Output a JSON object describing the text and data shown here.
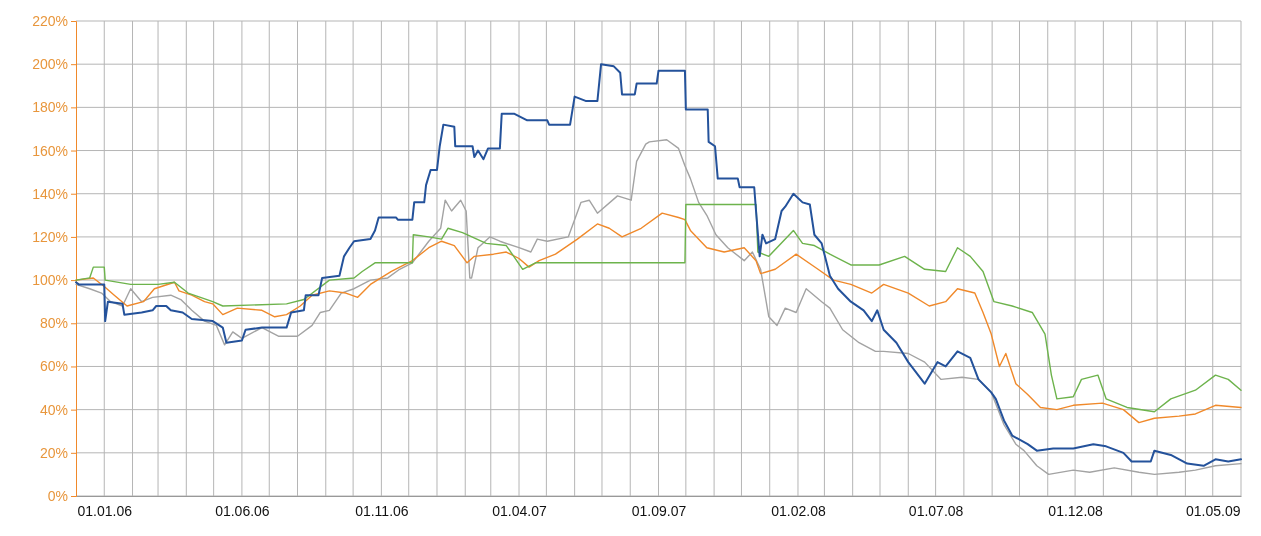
{
  "chart_data": {
    "type": "line",
    "grid": true,
    "marker": "none",
    "line_style": "solid",
    "xlim": [
      "2005-12-01",
      "2009-06-01"
    ],
    "xticks": [
      {
        "value": "2006-01-01",
        "label": "01.01.06"
      },
      {
        "value": "2006-02-01",
        "label": null
      },
      {
        "value": "2006-03-01",
        "label": null
      },
      {
        "value": "2006-04-01",
        "label": null
      },
      {
        "value": "2006-05-01",
        "label": null
      },
      {
        "value": "2006-06-01",
        "label": "01.06.06"
      },
      {
        "value": "2006-07-01",
        "label": null
      },
      {
        "value": "2006-08-01",
        "label": null
      },
      {
        "value": "2006-09-01",
        "label": null
      },
      {
        "value": "2006-10-01",
        "label": null
      },
      {
        "value": "2006-11-01",
        "label": "01.11.06"
      },
      {
        "value": "2006-12-01",
        "label": null
      },
      {
        "value": "2007-01-01",
        "label": null
      },
      {
        "value": "2007-02-01",
        "label": null
      },
      {
        "value": "2007-03-01",
        "label": null
      },
      {
        "value": "2007-04-01",
        "label": "01.04.07"
      },
      {
        "value": "2007-05-01",
        "label": null
      },
      {
        "value": "2007-06-01",
        "label": null
      },
      {
        "value": "2007-07-01",
        "label": null
      },
      {
        "value": "2007-08-01",
        "label": null
      },
      {
        "value": "2007-09-01",
        "label": "01.09.07"
      },
      {
        "value": "2007-10-01",
        "label": null
      },
      {
        "value": "2007-11-01",
        "label": null
      },
      {
        "value": "2007-12-01",
        "label": null
      },
      {
        "value": "2008-01-01",
        "label": null
      },
      {
        "value": "2008-02-01",
        "label": "01.02.08"
      },
      {
        "value": "2008-03-01",
        "label": null
      },
      {
        "value": "2008-04-01",
        "label": null
      },
      {
        "value": "2008-05-01",
        "label": null
      },
      {
        "value": "2008-06-01",
        "label": null
      },
      {
        "value": "2008-07-01",
        "label": "01.07.08"
      },
      {
        "value": "2008-08-01",
        "label": null
      },
      {
        "value": "2008-09-01",
        "label": null
      },
      {
        "value": "2008-10-01",
        "label": null
      },
      {
        "value": "2008-11-01",
        "label": null
      },
      {
        "value": "2008-12-01",
        "label": "01.12.08"
      },
      {
        "value": "2009-01-01",
        "label": null
      },
      {
        "value": "2009-02-01",
        "label": null
      },
      {
        "value": "2009-03-01",
        "label": null
      },
      {
        "value": "2009-04-01",
        "label": null
      },
      {
        "value": "2009-05-01",
        "label": "01.05.09"
      }
    ],
    "ylim": [
      0,
      220
    ],
    "yticks": [
      {
        "value": 0,
        "label": "0%"
      },
      {
        "value": 20,
        "label": "20%"
      },
      {
        "value": 40,
        "label": "40%"
      },
      {
        "value": 60,
        "label": "60%"
      },
      {
        "value": 80,
        "label": "80%"
      },
      {
        "value": 100,
        "label": "100%"
      },
      {
        "value": 120,
        "label": "120%"
      },
      {
        "value": 140,
        "label": "140%"
      },
      {
        "value": 160,
        "label": "160%"
      },
      {
        "value": 180,
        "label": "180%"
      },
      {
        "value": 200,
        "label": "200%"
      },
      {
        "value": 220,
        "label": "220%"
      }
    ],
    "series": [
      {
        "color": "#a3a3a3",
        "x": [
          "2005-12-01",
          "2005-12-16",
          "2005-12-29",
          "2006-01-08",
          "2006-01-21",
          "2006-01-30",
          "2006-02-11",
          "2006-02-23",
          "2006-03-15",
          "2006-03-26",
          "2006-04-07",
          "2006-04-21",
          "2006-05-04",
          "2006-05-13",
          "2006-05-22",
          "2006-06-01",
          "2006-06-23",
          "2006-07-11",
          "2006-08-01",
          "2006-08-17",
          "2006-08-26",
          "2006-09-05",
          "2006-09-18",
          "2006-10-02",
          "2006-10-20",
          "2006-11-08",
          "2006-11-21",
          "2006-12-05",
          "2006-12-23",
          "2007-01-05",
          "2007-01-10",
          "2007-01-17",
          "2007-01-27",
          "2007-02-02",
          "2007-02-06",
          "2007-02-08",
          "2007-02-15",
          "2007-02-28",
          "2007-03-11",
          "2007-04-01",
          "2007-04-14",
          "2007-04-21",
          "2007-05-02",
          "2007-05-25",
          "2007-06-08",
          "2007-06-17",
          "2007-06-26",
          "2007-07-18",
          "2007-08-02",
          "2007-08-08",
          "2007-08-18",
          "2007-08-22",
          "2007-09-10",
          "2007-09-23",
          "2007-09-30",
          "2007-10-06",
          "2007-10-15",
          "2007-10-24",
          "2007-11-03",
          "2007-11-16",
          "2007-12-04",
          "2007-12-13",
          "2007-12-22",
          "2007-12-31",
          "2008-01-09",
          "2008-01-18",
          "2008-01-30",
          "2008-02-10",
          "2008-02-27",
          "2008-03-07",
          "2008-03-21",
          "2008-04-08",
          "2008-04-26",
          "2008-05-05",
          "2008-06-01",
          "2008-06-19",
          "2008-07-07",
          "2008-07-30",
          "2008-08-17",
          "2008-08-31",
          "2008-09-14",
          "2008-09-27",
          "2008-10-06",
          "2008-10-20",
          "2008-11-02",
          "2008-11-29",
          "2008-12-17",
          "2009-01-13",
          "2009-02-09",
          "2009-02-26",
          "2009-03-25",
          "2009-04-12",
          "2009-05-04",
          "2009-06-01"
        ],
        "values": [
          98,
          96,
          94,
          90,
          88,
          96,
          90,
          92,
          93,
          91,
          86,
          81,
          79,
          70,
          76,
          73,
          78,
          74,
          74,
          79,
          85,
          86,
          94,
          96,
          100,
          101,
          105,
          108,
          118,
          124,
          137,
          132,
          137,
          132,
          101,
          101,
          115,
          120,
          118,
          115,
          113,
          119,
          118,
          120,
          136,
          137,
          131,
          139,
          137,
          155,
          163,
          164,
          165,
          161,
          153,
          147,
          136,
          130,
          121,
          115,
          109,
          113,
          105,
          83,
          79,
          87,
          85,
          96,
          90,
          87,
          77,
          71,
          67,
          67,
          66,
          62,
          54,
          55,
          54,
          48,
          33,
          24,
          21,
          14,
          10,
          12,
          11,
          13,
          11,
          10,
          11,
          12,
          14,
          15
        ]
      },
      {
        "color": "#f0892a",
        "x": [
          "2005-12-01",
          "2005-12-20",
          "2006-01-01",
          "2006-01-12",
          "2006-01-26",
          "2006-02-13",
          "2006-02-25",
          "2006-03-19",
          "2006-03-24",
          "2006-04-07",
          "2006-04-21",
          "2006-04-30",
          "2006-05-11",
          "2006-05-27",
          "2006-06-23",
          "2006-07-07",
          "2006-07-20",
          "2006-08-04",
          "2006-08-17",
          "2006-09-05",
          "2006-09-23",
          "2006-10-06",
          "2006-10-20",
          "2006-11-12",
          "2006-12-05",
          "2006-12-23",
          "2007-01-06",
          "2007-01-20",
          "2007-02-03",
          "2007-02-11",
          "2007-03-04",
          "2007-03-18",
          "2007-04-01",
          "2007-04-12",
          "2007-04-23",
          "2007-05-11",
          "2007-06-04",
          "2007-06-26",
          "2007-07-09",
          "2007-07-23",
          "2007-08-13",
          "2007-09-05",
          "2007-09-23",
          "2007-09-30",
          "2007-10-06",
          "2007-10-24",
          "2007-11-12",
          "2007-12-04",
          "2007-12-17",
          "2007-12-22",
          "2008-01-07",
          "2008-01-30",
          "2008-02-23",
          "2008-03-11",
          "2008-03-30",
          "2008-04-22",
          "2008-05-05",
          "2008-06-01",
          "2008-06-24",
          "2008-07-12",
          "2008-07-25",
          "2008-08-13",
          "2008-08-22",
          "2008-08-31",
          "2008-09-09",
          "2008-09-16",
          "2008-09-27",
          "2008-10-10",
          "2008-10-24",
          "2008-11-11",
          "2008-11-29",
          "2008-12-31",
          "2009-01-23",
          "2009-02-09",
          "2009-02-26",
          "2009-03-25",
          "2009-04-12",
          "2009-05-04",
          "2009-06-01"
        ],
        "values": [
          100,
          101,
          97,
          93,
          88,
          90,
          96,
          99,
          95,
          93,
          90,
          89,
          84,
          87,
          86,
          83,
          84,
          88,
          93,
          95,
          94,
          92,
          98,
          104,
          109,
          115,
          118,
          116,
          108,
          111,
          112,
          113,
          110,
          106,
          109,
          112,
          119,
          126,
          124,
          120,
          124,
          131,
          129,
          128,
          123,
          115,
          113,
          115,
          109,
          103,
          105,
          112,
          105,
          100,
          98,
          94,
          98,
          94,
          88,
          90,
          96,
          94,
          85,
          75,
          60,
          66,
          52,
          47,
          41,
          40,
          42,
          43,
          40,
          34,
          36,
          37,
          38,
          42,
          41
        ]
      },
      {
        "color": "#6db34c",
        "x": [
          "2005-12-01",
          "2005-12-16",
          "2005-12-20",
          "2006-01-01",
          "2006-01-02",
          "2006-01-30",
          "2006-03-01",
          "2006-03-19",
          "2006-04-03",
          "2006-04-30",
          "2006-05-11",
          "2006-07-20",
          "2006-08-08",
          "2006-09-05",
          "2006-10-02",
          "2006-10-11",
          "2006-10-25",
          "2006-11-17",
          "2006-12-05",
          "2006-12-06",
          "2006-12-23",
          "2007-01-06",
          "2007-01-13",
          "2007-01-29",
          "2007-02-24",
          "2007-03-18",
          "2007-04-05",
          "2007-04-19",
          "2007-09-30",
          "2007-10-01",
          "2007-12-17",
          "2007-12-19",
          "2007-12-31",
          "2008-01-27",
          "2008-02-06",
          "2008-02-19",
          "2008-03-07",
          "2008-03-30",
          "2008-04-30",
          "2008-05-28",
          "2008-06-19",
          "2008-07-12",
          "2008-07-25",
          "2008-08-08",
          "2008-08-22",
          "2008-09-03",
          "2008-09-23",
          "2008-10-15",
          "2008-10-29",
          "2008-11-05",
          "2008-11-11",
          "2008-11-29",
          "2008-12-08",
          "2008-12-26",
          "2009-01-04",
          "2009-01-27",
          "2009-02-26",
          "2009-03-16",
          "2009-04-12",
          "2009-05-04",
          "2009-05-18",
          "2009-06-01"
        ],
        "values": [
          100,
          101,
          106,
          106,
          100,
          98,
          98,
          99,
          94,
          90,
          88,
          89,
          91,
          100,
          101,
          104,
          108,
          108,
          108,
          121,
          120,
          119,
          124,
          122,
          117,
          116,
          105,
          108,
          108,
          135,
          135,
          113,
          111,
          123,
          117,
          116,
          112,
          107,
          107,
          111,
          105,
          104,
          115,
          111,
          104,
          90,
          88,
          85,
          75,
          56,
          45,
          46,
          54,
          56,
          45,
          41,
          39,
          45,
          49,
          56,
          54,
          49
        ]
      },
      {
        "color": "#24529b",
        "x": [
          "2005-12-01",
          "2005-12-04",
          "2006-01-01",
          "2006-01-02",
          "2006-01-05",
          "2006-01-21",
          "2006-01-23",
          "2006-02-11",
          "2006-02-23",
          "2006-02-27",
          "2006-03-10",
          "2006-03-15",
          "2006-03-28",
          "2006-04-07",
          "2006-04-30",
          "2006-05-11",
          "2006-05-15",
          "2006-06-01",
          "2006-06-05",
          "2006-06-23",
          "2006-07-20",
          "2006-07-25",
          "2006-08-08",
          "2006-08-10",
          "2006-08-24",
          "2006-08-28",
          "2006-09-16",
          "2006-09-21",
          "2006-09-27",
          "2006-10-02",
          "2006-10-20",
          "2006-10-25",
          "2006-10-29",
          "2006-11-17",
          "2006-11-19",
          "2006-12-05",
          "2006-12-07",
          "2006-12-18",
          "2006-12-20",
          "2006-12-25",
          "2007-01-01",
          "2007-01-04",
          "2007-01-08",
          "2007-01-20",
          "2007-01-21",
          "2007-02-09",
          "2007-02-11",
          "2007-02-15",
          "2007-02-21",
          "2007-02-26",
          "2007-03-11",
          "2007-03-13",
          "2007-03-27",
          "2007-04-10",
          "2007-05-02",
          "2007-05-04",
          "2007-05-27",
          "2007-06-01",
          "2007-06-13",
          "2007-06-26",
          "2007-06-30",
          "2007-07-14",
          "2007-07-21",
          "2007-07-23",
          "2007-08-06",
          "2007-08-08",
          "2007-08-30",
          "2007-09-01",
          "2007-09-30",
          "2007-10-01",
          "2007-10-25",
          "2007-10-26",
          "2007-11-02",
          "2007-11-05",
          "2007-11-27",
          "2007-11-29",
          "2007-12-15",
          "2007-12-17",
          "2007-12-21",
          "2007-12-24",
          "2007-12-28",
          "2008-01-07",
          "2008-01-14",
          "2008-01-18",
          "2008-01-27",
          "2008-02-06",
          "2008-02-14",
          "2008-02-19",
          "2008-02-27",
          "2008-03-07",
          "2008-03-16",
          "2008-03-30",
          "2008-04-13",
          "2008-04-22",
          "2008-04-28",
          "2008-05-05",
          "2008-05-19",
          "2008-06-01",
          "2008-06-19",
          "2008-07-03",
          "2008-07-12",
          "2008-07-25",
          "2008-08-08",
          "2008-08-17",
          "2008-08-31",
          "2008-09-05",
          "2008-09-14",
          "2008-09-23",
          "2008-10-10",
          "2008-10-20",
          "2008-11-07",
          "2008-11-29",
          "2008-12-21",
          "2009-01-04",
          "2009-01-23",
          "2009-02-01",
          "2009-02-22",
          "2009-02-26",
          "2009-03-16",
          "2009-04-03",
          "2009-04-21",
          "2009-05-04",
          "2009-05-18",
          "2009-06-01"
        ],
        "values": [
          99,
          98,
          98,
          81,
          90,
          89,
          84,
          85,
          86,
          88,
          88,
          86,
          85,
          82,
          81,
          78,
          71,
          72,
          77,
          78,
          78,
          85,
          86,
          93,
          93,
          101,
          102,
          111,
          115,
          118,
          119,
          123,
          129,
          129,
          128,
          128,
          136,
          136,
          144,
          151,
          151,
          162,
          172,
          171,
          162,
          162,
          157,
          160,
          156,
          161,
          161,
          177,
          177,
          174,
          174,
          172,
          172,
          185,
          183,
          183,
          200,
          199,
          196,
          186,
          186,
          191,
          191,
          197,
          197,
          179,
          179,
          164,
          162,
          147,
          147,
          143,
          143,
          132,
          111,
          121,
          117,
          119,
          132,
          134,
          140,
          136,
          135,
          121,
          117,
          102,
          96,
          90,
          86,
          81,
          86,
          77,
          71,
          62,
          52,
          62,
          60,
          67,
          64,
          54,
          48,
          45,
          35,
          28,
          24,
          21,
          22,
          22,
          24,
          23,
          20,
          16,
          16,
          21,
          19,
          15,
          14,
          17,
          16,
          17
        ]
      }
    ]
  }
}
